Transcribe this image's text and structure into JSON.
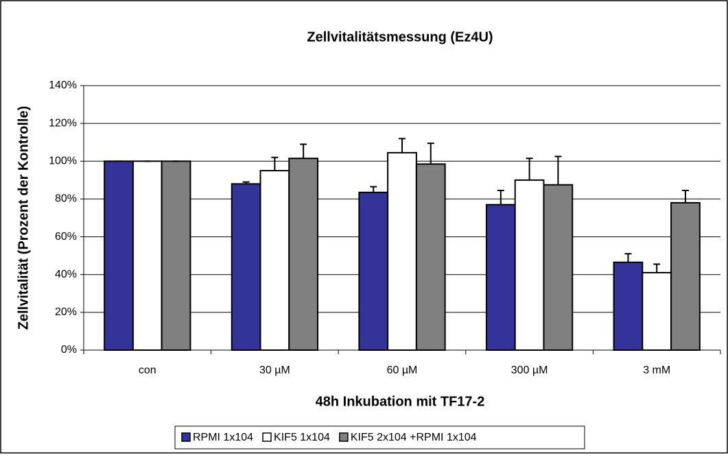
{
  "chart_data": {
    "type": "bar",
    "title": "Zellvitalitätsmessung (Ez4U)",
    "x_label": "48h Inkubation mit TF17-2",
    "y_label": "Zellvitalität (Prozent der Kontrolle)",
    "categories": [
      "con",
      "30 µM",
      "60 µM",
      "300 µM",
      "3 mM"
    ],
    "series": [
      {
        "name": "RPMI 1x104",
        "color": "#333399",
        "values": [
          100,
          88,
          83.5,
          77,
          46.5
        ],
        "errors": [
          0,
          1,
          3,
          7.5,
          4.5
        ]
      },
      {
        "name": "KIF5 1x104",
        "color": "#ffffff",
        "values": [
          100,
          95,
          104.5,
          90,
          41
        ],
        "errors": [
          0,
          7,
          7.5,
          11.5,
          4.5
        ]
      },
      {
        "name": "KIF5 2x104 +RPMI 1x104",
        "color": "#808080",
        "values": [
          100,
          101.5,
          98.5,
          87.5,
          78
        ],
        "errors": [
          0,
          7.5,
          11,
          15,
          6.5
        ]
      }
    ],
    "ylim": [
      0,
      140
    ],
    "yticks": [
      {
        "value": 0,
        "label": "0%"
      },
      {
        "value": 20,
        "label": "20%"
      },
      {
        "value": 40,
        "label": "40%"
      },
      {
        "value": 60,
        "label": "60%"
      },
      {
        "value": 80,
        "label": "80%"
      },
      {
        "value": 100,
        "label": "100%"
      },
      {
        "value": 120,
        "label": "120%"
      },
      {
        "value": 140,
        "label": "140%"
      }
    ],
    "grid": true,
    "legend": "bottom"
  }
}
